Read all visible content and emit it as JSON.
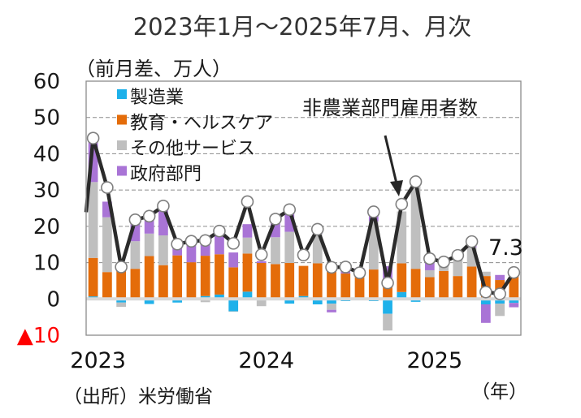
{
  "chart_data": {
    "type": "bar",
    "stacked": true,
    "title": "2023年1月～2025年7月、月次",
    "ylabel": "（前月差、万人）",
    "xlabel": "（年）",
    "source": "（出所）米労働省",
    "ylim": [
      -10,
      60
    ],
    "yticks": [
      {
        "value": 60,
        "label": "60"
      },
      {
        "value": 50,
        "label": "50"
      },
      {
        "value": 40,
        "label": "40"
      },
      {
        "value": 30,
        "label": "30"
      },
      {
        "value": 20,
        "label": "20"
      },
      {
        "value": 10,
        "label": "10"
      },
      {
        "value": 0,
        "label": "0"
      },
      {
        "value": -10,
        "label": "▲10"
      }
    ],
    "xticks": [
      {
        "index": 0,
        "label": "2023"
      },
      {
        "index": 12,
        "label": "2024"
      },
      {
        "index": 24,
        "label": "2025"
      }
    ],
    "grid": true,
    "legend_position": "top-left",
    "categories": [
      "2023-01",
      "2023-02",
      "2023-03",
      "2023-04",
      "2023-05",
      "2023-06",
      "2023-07",
      "2023-08",
      "2023-09",
      "2023-10",
      "2023-11",
      "2023-12",
      "2024-01",
      "2024-02",
      "2024-03",
      "2024-04",
      "2024-05",
      "2024-06",
      "2024-07",
      "2024-08",
      "2024-09",
      "2024-10",
      "2024-11",
      "2024-12",
      "2025-01",
      "2025-02",
      "2025-03",
      "2025-04",
      "2025-05",
      "2025-06",
      "2025-07"
    ],
    "series": [
      {
        "name": "製造業",
        "color": "#1eb1ea",
        "values": [
          0.7,
          0,
          -1.0,
          0,
          -1.4,
          0,
          -1.0,
          -0.3,
          0.8,
          1.2,
          -3.4,
          2.0,
          0.4,
          -0.3,
          -1.3,
          0.8,
          -1.5,
          -1.3,
          -0.6,
          -0.3,
          -0.6,
          -4.1,
          1.9,
          -0.8,
          -0.3,
          0.4,
          0,
          0.4,
          -1.5,
          -1.3,
          -1.1
        ]
      },
      {
        "name": "教育・ヘルスケア",
        "color": "#e46c0a",
        "values": [
          10.6,
          7.4,
          8.5,
          8.3,
          11.8,
          9.3,
          12.0,
          10.1,
          11.1,
          11.1,
          8.7,
          10.5,
          9.5,
          9.6,
          9.9,
          8.3,
          9.8,
          8.9,
          7.0,
          6.1,
          8.1,
          5.5,
          7.9,
          8.3,
          6.0,
          7.3,
          6.3,
          8.5,
          6.3,
          5.2,
          6.6
        ]
      },
      {
        "name": "その他サービス",
        "color": "#bfbfbf",
        "values": [
          20.9,
          15.1,
          -1.2,
          7.6,
          6.2,
          8.2,
          0,
          0,
          -0.9,
          0,
          -0.1,
          4.4,
          -2.0,
          7.4,
          8.6,
          0,
          8.1,
          -1.7,
          0,
          0,
          13.3,
          -4.6,
          14.3,
          23.2,
          1.9,
          3.0,
          4.9,
          5.3,
          1.2,
          -3.4,
          1.9
        ]
      },
      {
        "name": "政府部門",
        "color": "#a974d6",
        "values": [
          11.9,
          4.3,
          0,
          5.0,
          5.4,
          7.4,
          3.7,
          5.4,
          5.4,
          6.4,
          4.1,
          3.7,
          0.5,
          5.3,
          5.4,
          0,
          1.3,
          -0.7,
          2.2,
          2.4,
          1.5,
          3.5,
          0,
          0.8,
          3.2,
          0,
          0,
          1.7,
          -5.1,
          1.4,
          -1.2
        ]
      },
      {
        "name": "非農業部門雇用者数",
        "type": "line",
        "color": "#2b2b2b",
        "values": [
          44.3,
          30.7,
          8.8,
          21.8,
          22.8,
          25.6,
          15.1,
          15.9,
          16.1,
          18.7,
          15.3,
          26.8,
          12.2,
          22.0,
          24.6,
          12.1,
          19.2,
          8.7,
          8.8,
          7.2,
          24.0,
          4.4,
          26.1,
          32.3,
          11.1,
          10.2,
          12.0,
          15.8,
          1.9,
          1.4,
          7.3
        ],
        "prev_value": 23.9
      }
    ],
    "annotations": [
      {
        "text": "非農業部門雇用者数",
        "target_index": 22
      },
      {
        "text": "7.3",
        "target_index": 30
      }
    ]
  }
}
